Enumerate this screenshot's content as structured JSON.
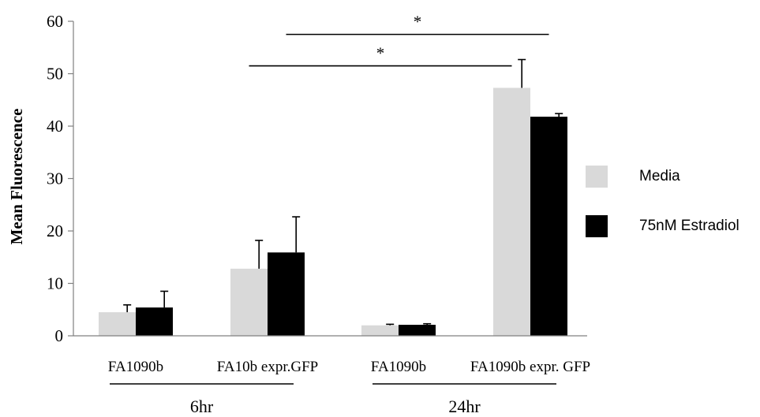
{
  "chart_data": {
    "type": "bar",
    "title": "",
    "xlabel": "",
    "ylabel": "Mean Fluorescence",
    "ylim": [
      0,
      60
    ],
    "yticks": [
      0,
      10,
      20,
      30,
      40,
      50,
      60
    ],
    "grid": false,
    "legend_position": "right",
    "categories": [
      "FA1090b",
      "FA10b expr.GFP",
      "FA1090b",
      "FA1090b expr. GFP"
    ],
    "groups": [
      {
        "label": "6hr",
        "categories": [
          0,
          1
        ]
      },
      {
        "label": "24hr",
        "categories": [
          2,
          3
        ]
      }
    ],
    "series": [
      {
        "name": "Media",
        "color": "#d9d9d9",
        "values": [
          4.5,
          12.8,
          2.0,
          47.3
        ],
        "errors": [
          1.4,
          5.4,
          0.2,
          5.4
        ]
      },
      {
        "name": "75nM Estradiol",
        "color": "#000000",
        "values": [
          5.4,
          15.9,
          2.1,
          41.8
        ],
        "errors": [
          3.1,
          6.8,
          0.2,
          0.6
        ]
      }
    ],
    "significance": [
      {
        "label": "*",
        "from_category": 1,
        "to_category": 3,
        "from_series": 1,
        "to_series": 1
      },
      {
        "label": "*",
        "from_category": 1,
        "to_category": 3,
        "from_series": 0,
        "to_series": 0
      }
    ]
  }
}
